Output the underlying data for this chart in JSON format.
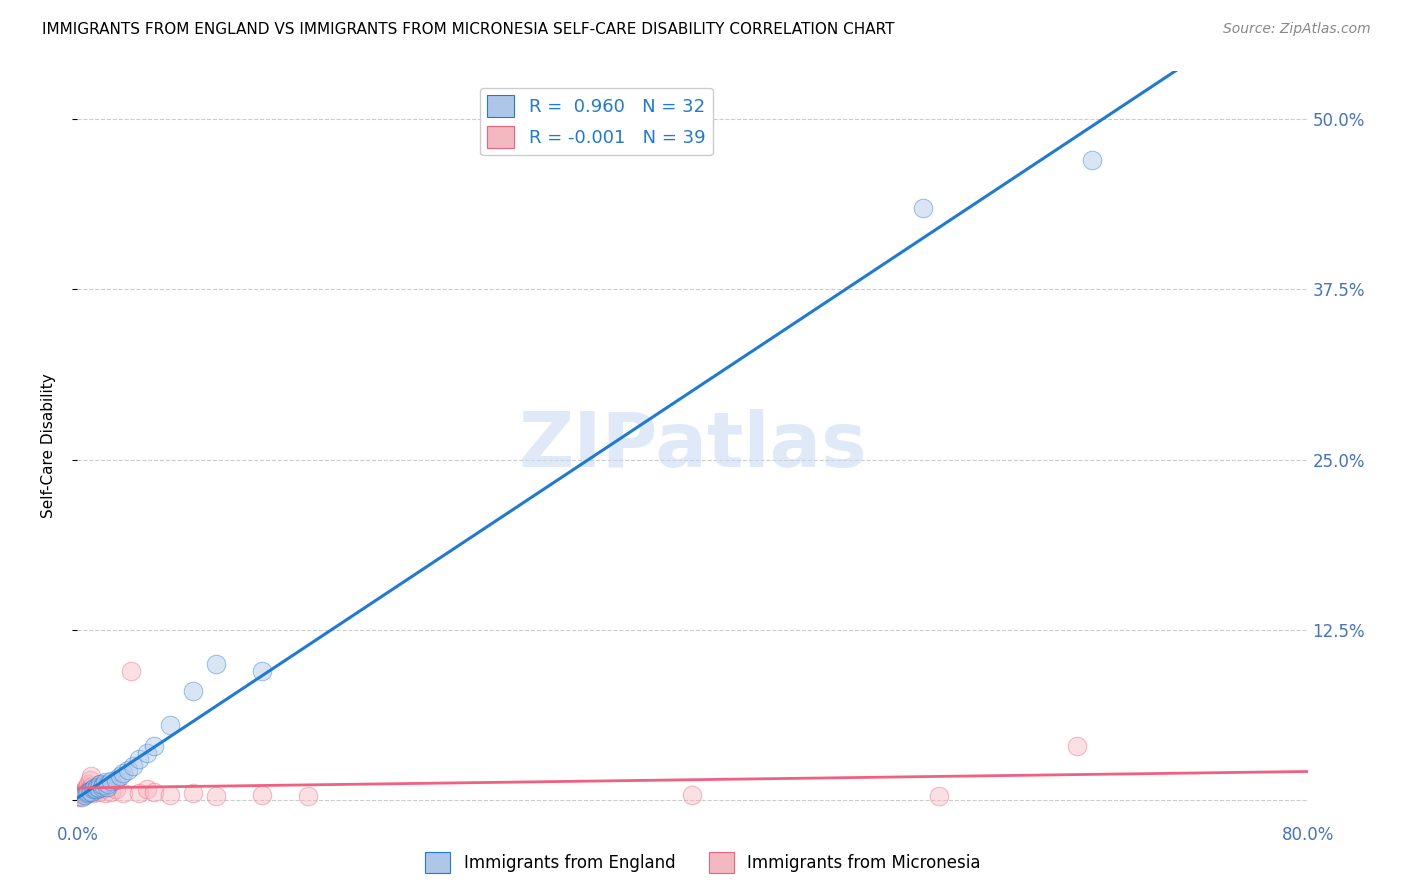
{
  "title": "IMMIGRANTS FROM ENGLAND VS IMMIGRANTS FROM MICRONESIA SELF-CARE DISABILITY CORRELATION CHART",
  "source": "Source: ZipAtlas.com",
  "ylabel": "Self-Care Disability",
  "x_min": 0.0,
  "x_max": 0.8,
  "y_min": -0.015,
  "y_max": 0.535,
  "x_ticks": [
    0.0,
    0.1,
    0.2,
    0.3,
    0.4,
    0.5,
    0.6,
    0.7,
    0.8
  ],
  "x_tick_labels": [
    "0.0%",
    "",
    "",
    "",
    "",
    "",
    "",
    "",
    "80.0%"
  ],
  "y_ticks": [
    0.0,
    0.125,
    0.25,
    0.375,
    0.5
  ],
  "y_tick_labels_right": [
    "",
    "12.5%",
    "25.0%",
    "37.5%",
    "50.0%"
  ],
  "legend1_label": "R =  0.960   N = 32",
  "legend2_label": "R = -0.001   N = 39",
  "legend1_color": "#aec6e8",
  "legend2_color": "#f4b8c1",
  "line1_color": "#1f7ad4",
  "line2_color": "#f06080",
  "watermark": "ZIPatlas",
  "england_x": [
    0.003,
    0.005,
    0.006,
    0.007,
    0.008,
    0.009,
    0.01,
    0.011,
    0.012,
    0.013,
    0.014,
    0.015,
    0.016,
    0.017,
    0.018,
    0.019,
    0.02,
    0.022,
    0.025,
    0.028,
    0.03,
    0.033,
    0.036,
    0.04,
    0.045,
    0.05,
    0.06,
    0.075,
    0.09,
    0.12,
    0.55,
    0.66
  ],
  "england_y": [
    0.002,
    0.004,
    0.005,
    0.006,
    0.007,
    0.006,
    0.008,
    0.009,
    0.008,
    0.01,
    0.009,
    0.012,
    0.01,
    0.011,
    0.013,
    0.01,
    0.012,
    0.014,
    0.015,
    0.018,
    0.02,
    0.022,
    0.025,
    0.03,
    0.035,
    0.04,
    0.055,
    0.08,
    0.1,
    0.095,
    0.435,
    0.47
  ],
  "micronesia_x": [
    0.001,
    0.002,
    0.003,
    0.004,
    0.004,
    0.005,
    0.005,
    0.006,
    0.006,
    0.007,
    0.007,
    0.008,
    0.008,
    0.009,
    0.009,
    0.01,
    0.011,
    0.012,
    0.013,
    0.014,
    0.015,
    0.016,
    0.018,
    0.02,
    0.022,
    0.025,
    0.03,
    0.035,
    0.04,
    0.045,
    0.05,
    0.06,
    0.075,
    0.09,
    0.12,
    0.15,
    0.4,
    0.56,
    0.65
  ],
  "micronesia_y": [
    0.002,
    0.003,
    0.005,
    0.004,
    0.006,
    0.005,
    0.008,
    0.006,
    0.01,
    0.007,
    0.012,
    0.008,
    0.015,
    0.01,
    0.018,
    0.005,
    0.007,
    0.008,
    0.01,
    0.006,
    0.012,
    0.008,
    0.005,
    0.01,
    0.006,
    0.008,
    0.005,
    0.095,
    0.005,
    0.008,
    0.006,
    0.004,
    0.005,
    0.003,
    0.004,
    0.003,
    0.004,
    0.003,
    0.04
  ],
  "scatter_size": 180,
  "scatter_alpha": 0.45,
  "background_color": "#ffffff",
  "grid_color": "#cccccc",
  "tick_color": "#4472c4"
}
